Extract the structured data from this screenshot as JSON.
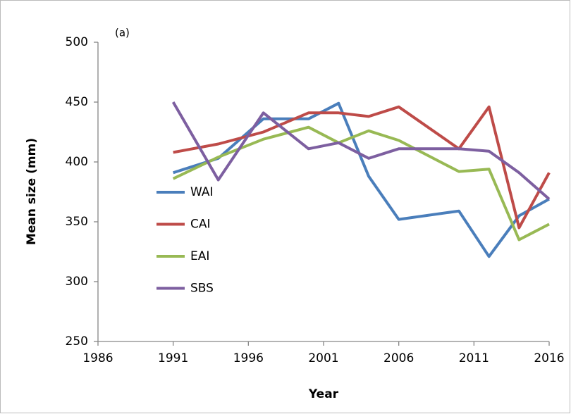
{
  "chart_data": {
    "type": "line",
    "annotation": "(a)",
    "x_label": "Year",
    "y_label": "Mean size (mm)",
    "x": [
      1991,
      1994,
      1997,
      2000,
      2002,
      2004,
      2006,
      2010,
      2012,
      2014,
      2016
    ],
    "series": [
      {
        "name": "WAI",
        "color": "#4a7ebb",
        "values": [
          391,
          403,
          436,
          436,
          449,
          388,
          352,
          359,
          321,
          355,
          369
        ]
      },
      {
        "name": "CAI",
        "color": "#be4b48",
        "values": [
          408,
          415,
          425,
          441,
          441,
          438,
          446,
          411,
          446,
          345,
          391
        ]
      },
      {
        "name": "EAI",
        "color": "#98b954",
        "values": [
          386,
          404,
          419,
          429,
          416,
          426,
          418,
          392,
          394,
          335,
          348
        ]
      },
      {
        "name": "SBS",
        "color": "#7d5fa0",
        "values": [
          450,
          385,
          441,
          411,
          416,
          403,
          411,
          411,
          409,
          391,
          369
        ]
      }
    ],
    "xlim": [
      1986,
      2016
    ],
    "xticks": [
      1986,
      1991,
      1996,
      2001,
      2006,
      2011,
      2016
    ],
    "ylim": [
      250,
      500
    ],
    "yticks": [
      250,
      300,
      350,
      400,
      450,
      500
    ],
    "grid": false,
    "legend": "left"
  }
}
